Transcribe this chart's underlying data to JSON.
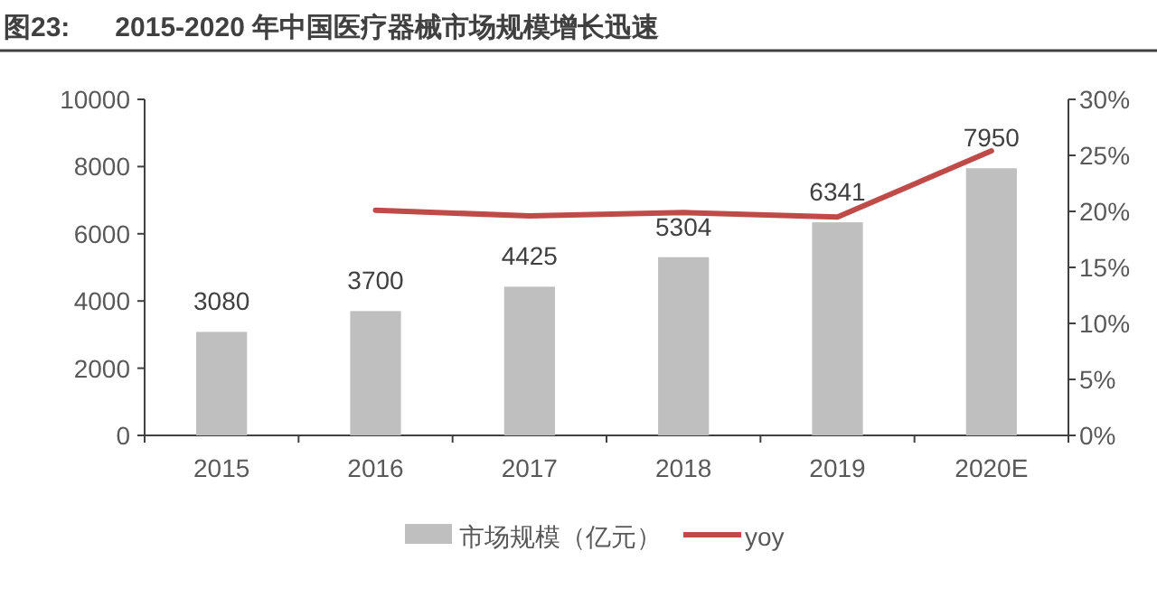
{
  "chart_data": {
    "type": "bar",
    "title": "图23:      2015-2020 年中国医疗器械市场规模增长迅速",
    "categories": [
      "2015",
      "2016",
      "2017",
      "2018",
      "2019",
      "2020E"
    ],
    "series": [
      {
        "name": "市场规模（亿元）",
        "color": "#bfbfbf",
        "values": [
          3080,
          3700,
          4425,
          5304,
          6341,
          7950
        ],
        "value_labels": [
          "3080",
          "3700",
          "4425",
          "5304",
          "6341",
          "7950"
        ]
      },
      {
        "type": "line",
        "name": "yoy",
        "color": "#be4b48",
        "axis": "y2",
        "values": [
          null,
          20.1,
          19.6,
          19.9,
          19.5,
          25.4
        ]
      }
    ],
    "ylim": [
      0,
      10000
    ],
    "yticks": [
      0,
      2000,
      4000,
      6000,
      8000,
      10000
    ],
    "y2lim": [
      0,
      30
    ],
    "y2ticks": [
      {
        "value": 0,
        "label": "0%"
      },
      {
        "value": 5,
        "label": "5%"
      },
      {
        "value": 10,
        "label": "10%"
      },
      {
        "value": 15,
        "label": "15%"
      },
      {
        "value": 20,
        "label": "20%"
      },
      {
        "value": 25,
        "label": "25%"
      },
      {
        "value": 30,
        "label": "30%"
      }
    ],
    "legend": "bottom",
    "grid": false
  }
}
